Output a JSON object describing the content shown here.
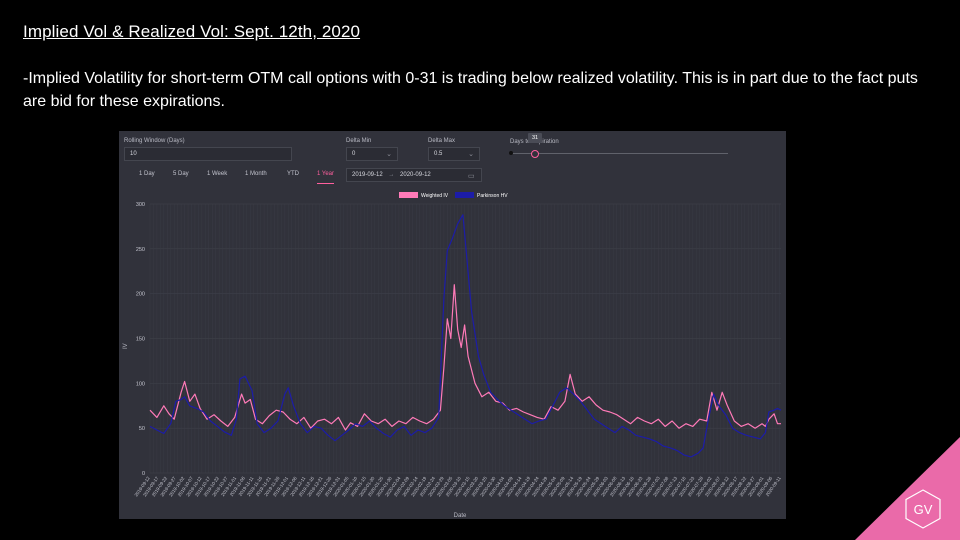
{
  "slide": {
    "title": "Implied Vol & Realized Vol: Sept. 12th, 2020",
    "body": "-Implied Volatility for short-term OTM call options with 0-31 is trading below realized volatility. This is in part due to the fact puts are bid for these expirations."
  },
  "controls": {
    "rolling_label": "Rolling Window (Days)",
    "rolling_value": "10",
    "delta_min_label": "Delta Min",
    "delta_min_value": "0",
    "delta_max_label": "Delta Max",
    "delta_max_value": "0.5",
    "dte_label": "Days to Expiration",
    "dte_value": "31",
    "date_start": "2019-09-12",
    "date_sep": "→",
    "date_end": "2020-09-12",
    "tabs": [
      "1 Day",
      "5 Day",
      "1 Week",
      "1 Month",
      "YTD",
      "1 Year"
    ],
    "active_tab": "1 Year"
  },
  "logo": {
    "text": "GV"
  },
  "colors": {
    "weighted_iv": "#ff7ab8",
    "parkinson_hv": "#1c1ca8",
    "panel": "#31323b",
    "corner": "#ea6aa9"
  },
  "chart_data": {
    "type": "line",
    "title": "",
    "xlabel": "Date",
    "ylabel": "IV",
    "ylim": [
      0,
      300
    ],
    "yticks": [
      0,
      50,
      100,
      150,
      200,
      250,
      300
    ],
    "grid": true,
    "legend_position": "top-center",
    "x_start": "2019-09-12",
    "x_end": "2020-09-11",
    "x_tick_labels": [
      "2019-09-12",
      "2019-09-17",
      "2019-09-22",
      "2019-09-27",
      "2019-10-02",
      "2019-10-07",
      "2019-10-12",
      "2019-10-17",
      "2019-10-22",
      "2019-10-27",
      "2019-11-01",
      "2019-11-06",
      "2019-11-11",
      "2019-11-16",
      "2019-11-21",
      "2019-11-26",
      "2019-12-01",
      "2019-12-06",
      "2019-12-11",
      "2019-12-16",
      "2019-12-21",
      "2019-12-26",
      "2019-12-31",
      "2020-01-05",
      "2020-01-10",
      "2020-01-15",
      "2020-01-20",
      "2020-01-25",
      "2020-01-30",
      "2020-02-04",
      "2020-02-09",
      "2020-02-14",
      "2020-02-19",
      "2020-02-24",
      "2020-02-29",
      "2020-03-05",
      "2020-03-10",
      "2020-03-15",
      "2020-03-20",
      "2020-03-25",
      "2020-03-30",
      "2020-04-04",
      "2020-04-09",
      "2020-04-14",
      "2020-04-19",
      "2020-04-24",
      "2020-04-29",
      "2020-05-04",
      "2020-05-09",
      "2020-05-14",
      "2020-05-19",
      "2020-05-24",
      "2020-05-29",
      "2020-06-03",
      "2020-06-08",
      "2020-06-13",
      "2020-06-18",
      "2020-06-23",
      "2020-06-28",
      "2020-07-03",
      "2020-07-08",
      "2020-07-13",
      "2020-07-18",
      "2020-07-23",
      "2020-07-28",
      "2020-08-02",
      "2020-08-07",
      "2020-08-12",
      "2020-08-17",
      "2020-08-22",
      "2020-08-27",
      "2020-09-01",
      "2020-09-06",
      "2020-09-11"
    ],
    "series": [
      {
        "name": "Weighted IV",
        "color": "#ff7ab8",
        "points": [
          [
            "2019-09-12",
            70
          ],
          [
            "2019-09-16",
            62
          ],
          [
            "2019-09-20",
            75
          ],
          [
            "2019-09-23",
            66
          ],
          [
            "2019-09-26",
            60
          ],
          [
            "2019-09-30",
            90
          ],
          [
            "2019-10-02",
            102
          ],
          [
            "2019-10-05",
            80
          ],
          [
            "2019-10-08",
            88
          ],
          [
            "2019-10-11",
            72
          ],
          [
            "2019-10-15",
            60
          ],
          [
            "2019-10-19",
            65
          ],
          [
            "2019-10-23",
            58
          ],
          [
            "2019-10-27",
            52
          ],
          [
            "2019-10-31",
            62
          ],
          [
            "2019-11-04",
            88
          ],
          [
            "2019-11-06",
            78
          ],
          [
            "2019-11-09",
            82
          ],
          [
            "2019-11-12",
            60
          ],
          [
            "2019-11-16",
            55
          ],
          [
            "2019-11-20",
            64
          ],
          [
            "2019-11-24",
            70
          ],
          [
            "2019-11-28",
            68
          ],
          [
            "2019-12-02",
            60
          ],
          [
            "2019-12-06",
            55
          ],
          [
            "2019-12-10",
            62
          ],
          [
            "2019-12-14",
            50
          ],
          [
            "2019-12-18",
            58
          ],
          [
            "2019-12-22",
            60
          ],
          [
            "2019-12-26",
            55
          ],
          [
            "2019-12-30",
            62
          ],
          [
            "2020-01-03",
            48
          ],
          [
            "2020-01-06",
            56
          ],
          [
            "2020-01-10",
            52
          ],
          [
            "2020-01-14",
            66
          ],
          [
            "2020-01-18",
            58
          ],
          [
            "2020-01-22",
            55
          ],
          [
            "2020-01-26",
            60
          ],
          [
            "2020-01-30",
            52
          ],
          [
            "2020-02-03",
            58
          ],
          [
            "2020-02-07",
            55
          ],
          [
            "2020-02-11",
            62
          ],
          [
            "2020-02-15",
            58
          ],
          [
            "2020-02-19",
            55
          ],
          [
            "2020-02-23",
            60
          ],
          [
            "2020-02-27",
            70
          ],
          [
            "2020-02-29",
            118
          ],
          [
            "2020-03-02",
            172
          ],
          [
            "2020-03-04",
            150
          ],
          [
            "2020-03-06",
            210
          ],
          [
            "2020-03-08",
            160
          ],
          [
            "2020-03-10",
            140
          ],
          [
            "2020-03-12",
            165
          ],
          [
            "2020-03-14",
            130
          ],
          [
            "2020-03-18",
            100
          ],
          [
            "2020-03-22",
            85
          ],
          [
            "2020-03-26",
            90
          ],
          [
            "2020-03-30",
            80
          ],
          [
            "2020-04-03",
            78
          ],
          [
            "2020-04-07",
            70
          ],
          [
            "2020-04-11",
            72
          ],
          [
            "2020-04-15",
            68
          ],
          [
            "2020-04-19",
            65
          ],
          [
            "2020-04-23",
            62
          ],
          [
            "2020-04-27",
            60
          ],
          [
            "2020-05-01",
            74
          ],
          [
            "2020-05-05",
            70
          ],
          [
            "2020-05-09",
            80
          ],
          [
            "2020-05-12",
            110
          ],
          [
            "2020-05-15",
            88
          ],
          [
            "2020-05-19",
            80
          ],
          [
            "2020-05-23",
            85
          ],
          [
            "2020-05-27",
            76
          ],
          [
            "2020-05-31",
            70
          ],
          [
            "2020-06-04",
            68
          ],
          [
            "2020-06-08",
            65
          ],
          [
            "2020-06-12",
            60
          ],
          [
            "2020-06-16",
            55
          ],
          [
            "2020-06-20",
            62
          ],
          [
            "2020-06-24",
            58
          ],
          [
            "2020-06-28",
            55
          ],
          [
            "2020-07-02",
            60
          ],
          [
            "2020-07-06",
            52
          ],
          [
            "2020-07-10",
            58
          ],
          [
            "2020-07-14",
            50
          ],
          [
            "2020-07-18",
            55
          ],
          [
            "2020-07-22",
            52
          ],
          [
            "2020-07-26",
            60
          ],
          [
            "2020-07-30",
            58
          ],
          [
            "2020-08-02",
            90
          ],
          [
            "2020-08-05",
            70
          ],
          [
            "2020-08-08",
            90
          ],
          [
            "2020-08-11",
            75
          ],
          [
            "2020-08-15",
            58
          ],
          [
            "2020-08-19",
            52
          ],
          [
            "2020-08-23",
            55
          ],
          [
            "2020-08-27",
            50
          ],
          [
            "2020-08-31",
            55
          ],
          [
            "2020-09-02",
            52
          ],
          [
            "2020-09-04",
            60
          ],
          [
            "2020-09-07",
            66
          ],
          [
            "2020-09-09",
            55
          ],
          [
            "2020-09-11",
            55
          ]
        ]
      },
      {
        "name": "Parkinson HV",
        "color": "#1c1ca8",
        "points": [
          [
            "2019-09-12",
            52
          ],
          [
            "2019-09-16",
            48
          ],
          [
            "2019-09-20",
            44
          ],
          [
            "2019-09-24",
            55
          ],
          [
            "2019-09-27",
            80
          ],
          [
            "2019-09-30",
            82
          ],
          [
            "2019-10-02",
            85
          ],
          [
            "2019-10-05",
            75
          ],
          [
            "2019-10-09",
            72
          ],
          [
            "2019-10-13",
            68
          ],
          [
            "2019-10-17",
            58
          ],
          [
            "2019-10-21",
            52
          ],
          [
            "2019-10-25",
            46
          ],
          [
            "2019-10-29",
            42
          ],
          [
            "2019-11-01",
            60
          ],
          [
            "2019-11-03",
            105
          ],
          [
            "2019-11-06",
            108
          ],
          [
            "2019-11-10",
            92
          ],
          [
            "2019-11-13",
            55
          ],
          [
            "2019-11-17",
            45
          ],
          [
            "2019-11-21",
            50
          ],
          [
            "2019-11-25",
            58
          ],
          [
            "2019-11-29",
            88
          ],
          [
            "2019-12-01",
            95
          ],
          [
            "2019-12-04",
            75
          ],
          [
            "2019-12-08",
            55
          ],
          [
            "2019-12-12",
            45
          ],
          [
            "2019-12-16",
            52
          ],
          [
            "2019-12-20",
            50
          ],
          [
            "2019-12-24",
            42
          ],
          [
            "2019-12-28",
            36
          ],
          [
            "2020-01-01",
            42
          ],
          [
            "2020-01-05",
            48
          ],
          [
            "2020-01-09",
            55
          ],
          [
            "2020-01-13",
            52
          ],
          [
            "2020-01-17",
            58
          ],
          [
            "2020-01-21",
            50
          ],
          [
            "2020-01-25",
            44
          ],
          [
            "2020-01-29",
            40
          ],
          [
            "2020-02-02",
            48
          ],
          [
            "2020-02-06",
            52
          ],
          [
            "2020-02-10",
            42
          ],
          [
            "2020-02-14",
            48
          ],
          [
            "2020-02-18",
            45
          ],
          [
            "2020-02-22",
            50
          ],
          [
            "2020-02-26",
            62
          ],
          [
            "2020-02-29",
            195
          ],
          [
            "2020-03-02",
            248
          ],
          [
            "2020-03-05",
            262
          ],
          [
            "2020-03-08",
            278
          ],
          [
            "2020-03-11",
            288
          ],
          [
            "2020-03-13",
            245
          ],
          [
            "2020-03-16",
            180
          ],
          [
            "2020-03-20",
            130
          ],
          [
            "2020-03-23",
            110
          ],
          [
            "2020-03-27",
            90
          ],
          [
            "2020-03-31",
            82
          ],
          [
            "2020-04-04",
            75
          ],
          [
            "2020-04-08",
            70
          ],
          [
            "2020-04-12",
            65
          ],
          [
            "2020-04-16",
            60
          ],
          [
            "2020-04-20",
            55
          ],
          [
            "2020-04-24",
            58
          ],
          [
            "2020-04-28",
            60
          ],
          [
            "2020-05-02",
            75
          ],
          [
            "2020-05-06",
            90
          ],
          [
            "2020-05-10",
            95
          ],
          [
            "2020-05-14",
            88
          ],
          [
            "2020-05-18",
            80
          ],
          [
            "2020-05-22",
            70
          ],
          [
            "2020-05-26",
            60
          ],
          [
            "2020-05-30",
            55
          ],
          [
            "2020-06-03",
            50
          ],
          [
            "2020-06-07",
            45
          ],
          [
            "2020-06-11",
            52
          ],
          [
            "2020-06-15",
            48
          ],
          [
            "2020-06-19",
            42
          ],
          [
            "2020-06-23",
            40
          ],
          [
            "2020-06-27",
            38
          ],
          [
            "2020-07-01",
            35
          ],
          [
            "2020-07-05",
            30
          ],
          [
            "2020-07-09",
            28
          ],
          [
            "2020-07-13",
            25
          ],
          [
            "2020-07-17",
            20
          ],
          [
            "2020-07-21",
            18
          ],
          [
            "2020-07-25",
            22
          ],
          [
            "2020-07-28",
            28
          ],
          [
            "2020-07-31",
            60
          ],
          [
            "2020-08-03",
            88
          ],
          [
            "2020-08-06",
            75
          ],
          [
            "2020-08-10",
            65
          ],
          [
            "2020-08-14",
            50
          ],
          [
            "2020-08-18",
            45
          ],
          [
            "2020-08-22",
            42
          ],
          [
            "2020-08-26",
            40
          ],
          [
            "2020-08-30",
            38
          ],
          [
            "2020-09-02",
            45
          ],
          [
            "2020-09-04",
            68
          ],
          [
            "2020-09-07",
            70
          ],
          [
            "2020-09-09",
            72
          ],
          [
            "2020-09-11",
            70
          ]
        ]
      }
    ]
  }
}
